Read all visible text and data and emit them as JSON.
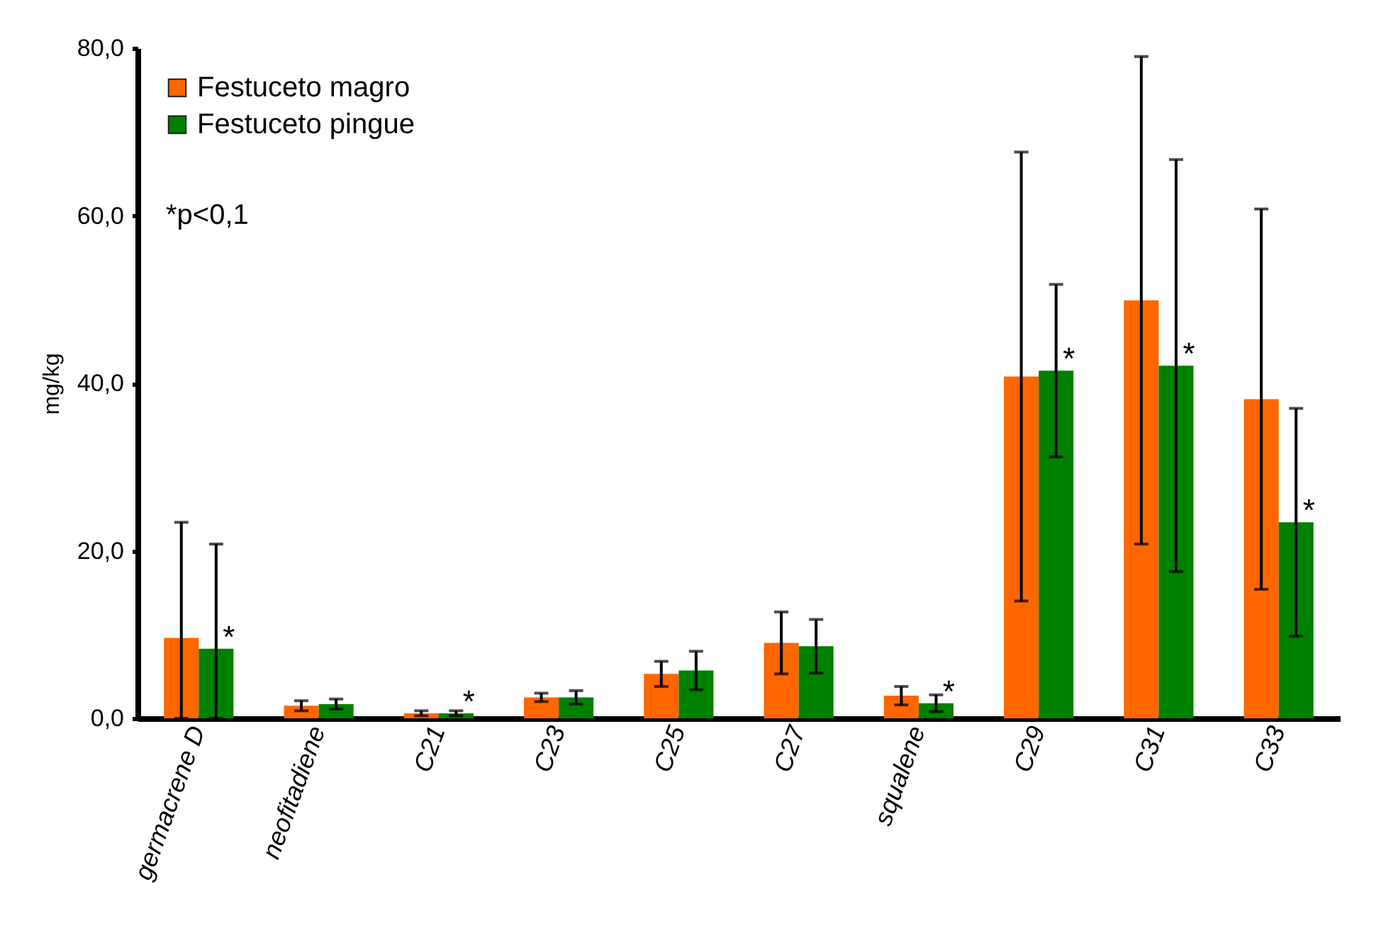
{
  "chart_data": {
    "type": "bar",
    "ylabel": "mg/kg",
    "categories": [
      "germacrene D",
      "neofitadiene",
      "C21",
      "C23",
      "C25",
      "C27",
      "squalene",
      "C29",
      "C31",
      "C33"
    ],
    "series": [
      {
        "name": "Festuceto magro",
        "color": "#ff6600",
        "values": [
          9.6,
          1.5,
          0.6,
          2.5,
          5.3,
          9.0,
          2.7,
          40.8,
          49.9,
          38.1
        ],
        "errors": [
          [
            0,
            23.4
          ],
          0.6,
          0.3,
          0.5,
          1.5,
          3.7,
          1.1,
          26.8,
          29.1,
          22.7
        ]
      },
      {
        "name": "Festuceto pingue",
        "color": "#008000",
        "values": [
          8.3,
          1.7,
          0.6,
          2.5,
          5.7,
          8.6,
          1.8,
          41.5,
          42.1,
          23.4
        ],
        "errors": [
          [
            0,
            20.8
          ],
          0.6,
          0.3,
          0.8,
          2.3,
          3.2,
          1.0,
          10.3,
          24.6,
          13.6
        ],
        "value_labels": [
          "*",
          null,
          "*",
          null,
          null,
          null,
          "*",
          "*",
          "*",
          "*"
        ]
      }
    ],
    "ylim": [
      0,
      80
    ],
    "yticks": [
      {
        "value": 0,
        "label": "0,0"
      },
      {
        "value": 20,
        "label": "20,0"
      },
      {
        "value": 40,
        "label": "40,0"
      },
      {
        "value": 60,
        "label": "60,0"
      },
      {
        "value": 80,
        "label": "80,0"
      }
    ],
    "grid": false,
    "legend": "top left",
    "annotations": [
      "*p<0,1"
    ]
  }
}
